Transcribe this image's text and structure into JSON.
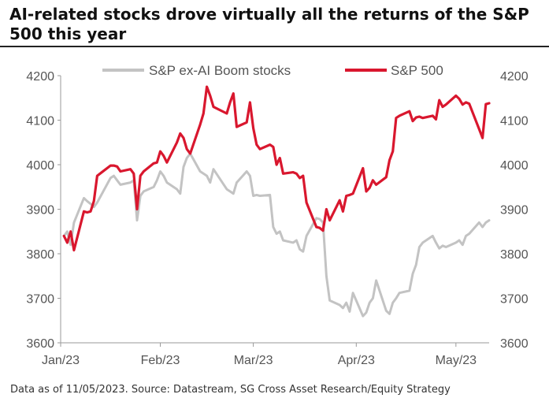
{
  "title": "AI-related stocks drove virtually all the returns of the S&P 500 this year",
  "source": "Data as of 11/05/2023. Source: Datastream, SG Cross Asset Research/Equity Strategy",
  "colors": {
    "sp500": "#d9172e",
    "ex_ai": "#c3c3c3",
    "axis": "#9a9a9a"
  },
  "chart_data": {
    "type": "line",
    "legend_position": "top",
    "grid": false,
    "y_left": {
      "ylim": [
        3600,
        4200
      ],
      "ticks": [
        "3600",
        "3700",
        "3800",
        "3900",
        "4000",
        "4100",
        "4200"
      ]
    },
    "y_right": {
      "ylim": [
        3600,
        4200
      ],
      "ticks": [
        "3600",
        "3700",
        "3800",
        "3900",
        "4000",
        "4100",
        "4200"
      ]
    },
    "x_dates": {
      "xlim": [
        "2023-01-02",
        "2023-05-11"
      ],
      "ticks": [
        {
          "date": "2023-01-02",
          "label": "Jan/23"
        },
        {
          "date": "2023-02-01",
          "label": "Feb/23"
        },
        {
          "date": "2023-03-01",
          "label": "Mar/23"
        },
        {
          "date": "2023-04-01",
          "label": "Apr/23"
        },
        {
          "date": "2023-05-01",
          "label": "May/23"
        }
      ]
    },
    "series": [
      {
        "name": "S&P ex-AI Boom stocks",
        "color": "#c3c3c3",
        "points": [
          [
            "2023-01-03",
            3840
          ],
          [
            "2023-01-04",
            3850
          ],
          [
            "2023-01-05",
            3820
          ],
          [
            "2023-01-06",
            3870
          ],
          [
            "2023-01-09",
            3925
          ],
          [
            "2023-01-10",
            3918
          ],
          [
            "2023-01-11",
            3912
          ],
          [
            "2023-01-12",
            3905
          ],
          [
            "2023-01-13",
            3915
          ],
          [
            "2023-01-17",
            3970
          ],
          [
            "2023-01-18",
            3975
          ],
          [
            "2023-01-19",
            3965
          ],
          [
            "2023-01-20",
            3955
          ],
          [
            "2023-01-23",
            3960
          ],
          [
            "2023-01-24",
            3965
          ],
          [
            "2023-01-25",
            3875
          ],
          [
            "2023-01-26",
            3930
          ],
          [
            "2023-01-27",
            3940
          ],
          [
            "2023-01-30",
            3950
          ],
          [
            "2023-01-31",
            3965
          ],
          [
            "2023-02-01",
            3985
          ],
          [
            "2023-02-02",
            3975
          ],
          [
            "2023-02-03",
            3960
          ],
          [
            "2023-02-06",
            3945
          ],
          [
            "2023-02-07",
            3935
          ],
          [
            "2023-02-08",
            3995
          ],
          [
            "2023-02-09",
            4015
          ],
          [
            "2023-02-10",
            4025
          ],
          [
            "2023-02-13",
            3985
          ],
          [
            "2023-02-14",
            3980
          ],
          [
            "2023-02-15",
            3975
          ],
          [
            "2023-02-16",
            3960
          ],
          [
            "2023-02-17",
            3990
          ],
          [
            "2023-02-21",
            3945
          ],
          [
            "2023-02-22",
            3940
          ],
          [
            "2023-02-23",
            3935
          ],
          [
            "2023-02-24",
            3960
          ],
          [
            "2023-02-27",
            3985
          ],
          [
            "2023-02-28",
            3975
          ],
          [
            "2023-03-01",
            3930
          ],
          [
            "2023-03-02",
            3932
          ],
          [
            "2023-03-03",
            3930
          ],
          [
            "2023-03-06",
            3932
          ],
          [
            "2023-03-07",
            3860
          ],
          [
            "2023-03-08",
            3845
          ],
          [
            "2023-03-09",
            3850
          ],
          [
            "2023-03-10",
            3830
          ],
          [
            "2023-03-13",
            3825
          ],
          [
            "2023-03-14",
            3830
          ],
          [
            "2023-03-15",
            3810
          ],
          [
            "2023-03-16",
            3805
          ],
          [
            "2023-03-17",
            3840
          ],
          [
            "2023-03-20",
            3880
          ],
          [
            "2023-03-21",
            3878
          ],
          [
            "2023-03-22",
            3870
          ],
          [
            "2023-03-23",
            3750
          ],
          [
            "2023-03-24",
            3695
          ],
          [
            "2023-03-27",
            3685
          ],
          [
            "2023-03-28",
            3678
          ],
          [
            "2023-03-29",
            3690
          ],
          [
            "2023-03-30",
            3670
          ],
          [
            "2023-03-31",
            3712
          ],
          [
            "2023-04-03",
            3660
          ],
          [
            "2023-04-04",
            3668
          ],
          [
            "2023-04-05",
            3690
          ],
          [
            "2023-04-06",
            3700
          ],
          [
            "2023-04-07",
            3740
          ],
          [
            "2023-04-10",
            3672
          ],
          [
            "2023-04-11",
            3665
          ],
          [
            "2023-04-12",
            3690
          ],
          [
            "2023-04-13",
            3700
          ],
          [
            "2023-04-14",
            3712
          ],
          [
            "2023-04-17",
            3717
          ],
          [
            "2023-04-18",
            3755
          ],
          [
            "2023-04-19",
            3775
          ],
          [
            "2023-04-20",
            3815
          ],
          [
            "2023-04-21",
            3825
          ],
          [
            "2023-04-24",
            3840
          ],
          [
            "2023-04-25",
            3825
          ],
          [
            "2023-04-26",
            3812
          ],
          [
            "2023-04-27",
            3818
          ],
          [
            "2023-04-28",
            3815
          ],
          [
            "2023-05-01",
            3825
          ],
          [
            "2023-05-02",
            3830
          ],
          [
            "2023-05-03",
            3820
          ],
          [
            "2023-05-04",
            3840
          ],
          [
            "2023-05-05",
            3845
          ],
          [
            "2023-05-08",
            3870
          ],
          [
            "2023-05-09",
            3860
          ],
          [
            "2023-05-10",
            3870
          ],
          [
            "2023-05-11",
            3875
          ]
        ]
      },
      {
        "name": "S&P 500",
        "color": "#d9172e",
        "points": [
          [
            "2023-01-03",
            3840
          ],
          [
            "2023-01-04",
            3825
          ],
          [
            "2023-01-05",
            3850
          ],
          [
            "2023-01-06",
            3808
          ],
          [
            "2023-01-09",
            3895
          ],
          [
            "2023-01-10",
            3893
          ],
          [
            "2023-01-11",
            3895
          ],
          [
            "2023-01-12",
            3918
          ],
          [
            "2023-01-13",
            3975
          ],
          [
            "2023-01-17",
            3998
          ],
          [
            "2023-01-18",
            3998
          ],
          [
            "2023-01-19",
            3996
          ],
          [
            "2023-01-20",
            3985
          ],
          [
            "2023-01-23",
            3990
          ],
          [
            "2023-01-24",
            3980
          ],
          [
            "2023-01-25",
            3900
          ],
          [
            "2023-01-26",
            3975
          ],
          [
            "2023-01-27",
            3985
          ],
          [
            "2023-01-30",
            4003
          ],
          [
            "2023-01-31",
            4005
          ],
          [
            "2023-02-01",
            4030
          ],
          [
            "2023-02-02",
            4020
          ],
          [
            "2023-02-03",
            4005
          ],
          [
            "2023-02-06",
            4050
          ],
          [
            "2023-02-07",
            4070
          ],
          [
            "2023-02-08",
            4060
          ],
          [
            "2023-02-09",
            4035
          ],
          [
            "2023-02-10",
            4025
          ],
          [
            "2023-02-13",
            4090
          ],
          [
            "2023-02-14",
            4115
          ],
          [
            "2023-02-15",
            4175
          ],
          [
            "2023-02-16",
            4155
          ],
          [
            "2023-02-17",
            4130
          ],
          [
            "2023-02-21",
            4115
          ],
          [
            "2023-02-22",
            4140
          ],
          [
            "2023-02-23",
            4160
          ],
          [
            "2023-02-24",
            4085
          ],
          [
            "2023-02-27",
            4095
          ],
          [
            "2023-02-28",
            4140
          ],
          [
            "2023-03-01",
            4082
          ],
          [
            "2023-03-02",
            4045
          ],
          [
            "2023-03-03",
            4035
          ],
          [
            "2023-03-06",
            4045
          ],
          [
            "2023-03-07",
            4040
          ],
          [
            "2023-03-08",
            4000
          ],
          [
            "2023-03-09",
            4015
          ],
          [
            "2023-03-10",
            3980
          ],
          [
            "2023-03-13",
            3983
          ],
          [
            "2023-03-14",
            3980
          ],
          [
            "2023-03-15",
            3970
          ],
          [
            "2023-03-16",
            3975
          ],
          [
            "2023-03-17",
            3915
          ],
          [
            "2023-03-20",
            3860
          ],
          [
            "2023-03-21",
            3858
          ],
          [
            "2023-03-22",
            3852
          ],
          [
            "2023-03-23",
            3900
          ],
          [
            "2023-03-24",
            3875
          ],
          [
            "2023-03-27",
            3920
          ],
          [
            "2023-03-28",
            3895
          ],
          [
            "2023-03-29",
            3930
          ],
          [
            "2023-03-30",
            3932
          ],
          [
            "2023-03-31",
            3935
          ],
          [
            "2023-04-03",
            3992
          ],
          [
            "2023-04-04",
            3940
          ],
          [
            "2023-04-05",
            3948
          ],
          [
            "2023-04-06",
            3965
          ],
          [
            "2023-04-07",
            3955
          ],
          [
            "2023-04-10",
            3972
          ],
          [
            "2023-04-11",
            4010
          ],
          [
            "2023-04-12",
            4030
          ],
          [
            "2023-04-13",
            4105
          ],
          [
            "2023-04-14",
            4110
          ],
          [
            "2023-04-17",
            4120
          ],
          [
            "2023-04-18",
            4098
          ],
          [
            "2023-04-19",
            4106
          ],
          [
            "2023-04-20",
            4108
          ],
          [
            "2023-04-21",
            4105
          ],
          [
            "2023-04-24",
            4110
          ],
          [
            "2023-04-25",
            4102
          ],
          [
            "2023-04-26",
            4145
          ],
          [
            "2023-04-27",
            4130
          ],
          [
            "2023-04-28",
            4135
          ],
          [
            "2023-05-01",
            4155
          ],
          [
            "2023-05-02",
            4148
          ],
          [
            "2023-05-03",
            4135
          ],
          [
            "2023-05-04",
            4140
          ],
          [
            "2023-05-05",
            4137
          ],
          [
            "2023-05-08",
            4080
          ],
          [
            "2023-05-09",
            4060
          ],
          [
            "2023-05-10",
            4136
          ],
          [
            "2023-05-11",
            4138
          ]
        ]
      }
    ]
  }
}
